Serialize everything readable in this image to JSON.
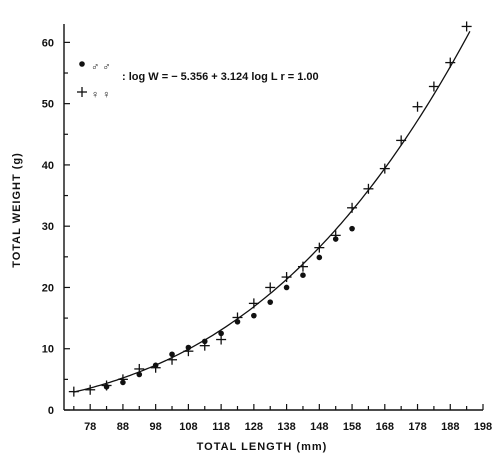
{
  "chart_data": {
    "type": "scatter",
    "xlabel": "TOTAL LENGTH (mm)",
    "ylabel": "TOTAL WEIGHT (g)",
    "xlim": [
      70,
      198
    ],
    "ylim": [
      0,
      63
    ],
    "x_ticks": [
      78,
      88,
      98,
      108,
      118,
      128,
      138,
      148,
      158,
      168,
      178,
      188,
      198
    ],
    "y_ticks": [
      0,
      10,
      20,
      30,
      40,
      50,
      60
    ],
    "grid": false,
    "legend_position": "top-left",
    "series": [
      {
        "marker": "dot",
        "symbol": "●♂♂",
        "x": [
          83,
          88,
          93,
          98,
          103,
          108,
          113,
          118,
          123,
          128,
          133,
          138,
          143,
          148,
          153,
          158
        ],
        "y": [
          3.8,
          4.5,
          5.8,
          7.3,
          9.1,
          10.2,
          11.2,
          12.5,
          14.4,
          15.4,
          17.6,
          20.0,
          22.0,
          24.9,
          27.9,
          29.6
        ]
      },
      {
        "marker": "plus",
        "symbol": "+♀♀",
        "x": [
          73,
          78,
          83,
          88,
          93,
          98,
          103,
          108,
          113,
          118,
          123,
          128,
          133,
          138,
          143,
          148,
          153,
          158,
          163,
          168,
          173,
          178,
          183,
          188,
          193
        ],
        "y": [
          3.0,
          3.3,
          4.0,
          5.0,
          6.7,
          6.9,
          8.2,
          9.6,
          10.5,
          11.5,
          15.1,
          17.4,
          20.0,
          21.7,
          23.4,
          26.5,
          28.5,
          33.0,
          36.1,
          39.4,
          44.0,
          49.5,
          52.8,
          56.7,
          62.6
        ]
      }
    ],
    "fit": {
      "equation": ": log W = − 5.356 + 3.124 log L    r = 1.00",
      "intercept": -5.356,
      "slope": 3.124,
      "x_range": [
        73,
        194
      ]
    }
  }
}
